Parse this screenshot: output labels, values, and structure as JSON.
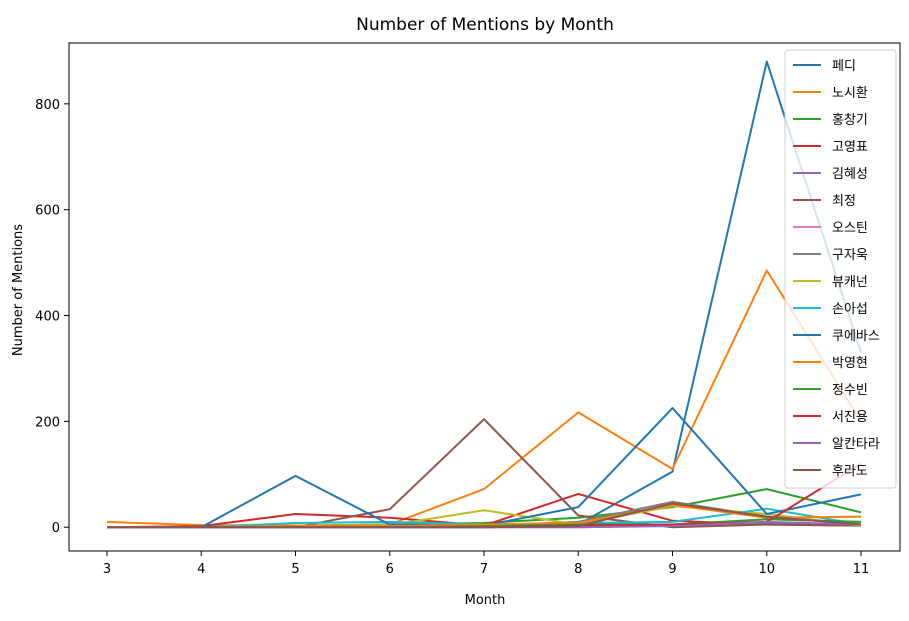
{
  "chart_data": {
    "type": "line",
    "title": "Number of Mentions by Month",
    "xlabel": "Month",
    "ylabel": "Number of Mentions",
    "x": [
      3,
      4,
      5,
      6,
      7,
      8,
      9,
      10,
      11
    ],
    "xlim": [
      3,
      11
    ],
    "ylim": [
      -45,
      915
    ],
    "yticks": [
      0,
      200,
      400,
      600,
      800
    ],
    "grid": false,
    "legend_position": "top-right",
    "series": [
      {
        "name": "페디",
        "color": "#1f77b4",
        "values": [
          0,
          0,
          0,
          0,
          0,
          5,
          105,
          880,
          330
        ]
      },
      {
        "name": "노시환",
        "color": "#ff7f0e",
        "values": [
          10,
          4,
          3,
          5,
          72,
          217,
          110,
          485,
          200
        ]
      },
      {
        "name": "홍창기",
        "color": "#2ca02c",
        "values": [
          0,
          0,
          3,
          5,
          8,
          18,
          38,
          72,
          28
        ]
      },
      {
        "name": "고영표",
        "color": "#d62728",
        "values": [
          0,
          2,
          25,
          18,
          3,
          63,
          12,
          5,
          3
        ]
      },
      {
        "name": "김혜성",
        "color": "#9467bd",
        "values": [
          0,
          0,
          0,
          0,
          0,
          2,
          5,
          8,
          4
        ]
      },
      {
        "name": "최정",
        "color": "#8c564b",
        "values": [
          0,
          1,
          0,
          34,
          204,
          22,
          0,
          5,
          3
        ]
      },
      {
        "name": "오스틴",
        "color": "#e377c2",
        "values": [
          0,
          0,
          0,
          0,
          0,
          0,
          3,
          15,
          10
        ]
      },
      {
        "name": "구자욱",
        "color": "#7f7f7f",
        "values": [
          0,
          0,
          2,
          5,
          3,
          10,
          48,
          20,
          5
        ]
      },
      {
        "name": "뷰캐넌",
        "color": "#bcbd22",
        "values": [
          0,
          0,
          3,
          4,
          32,
          5,
          40,
          25,
          3
        ]
      },
      {
        "name": "손아섭",
        "color": "#17becf",
        "values": [
          0,
          0,
          8,
          10,
          5,
          8,
          10,
          35,
          5
        ]
      },
      {
        "name": "쿠에바스",
        "color": "#1f77b4",
        "values": [
          0,
          0,
          97,
          5,
          3,
          38,
          225,
          25,
          62
        ]
      },
      {
        "name": "박영현",
        "color": "#ff7f0e",
        "values": [
          0,
          0,
          3,
          2,
          5,
          8,
          42,
          18,
          20
        ]
      },
      {
        "name": "정수빈",
        "color": "#2ca02c",
        "values": [
          0,
          0,
          0,
          0,
          2,
          5,
          5,
          15,
          10
        ]
      },
      {
        "name": "서진용",
        "color": "#d62728",
        "values": [
          0,
          0,
          0,
          0,
          0,
          3,
          5,
          10,
          120
        ]
      },
      {
        "name": "알칸타라",
        "color": "#9467bd",
        "values": [
          0,
          0,
          0,
          0,
          0,
          0,
          2,
          10,
          5
        ]
      },
      {
        "name": "후라도",
        "color": "#8c564b",
        "values": [
          0,
          0,
          0,
          0,
          0,
          2,
          45,
          20,
          5
        ]
      }
    ]
  }
}
